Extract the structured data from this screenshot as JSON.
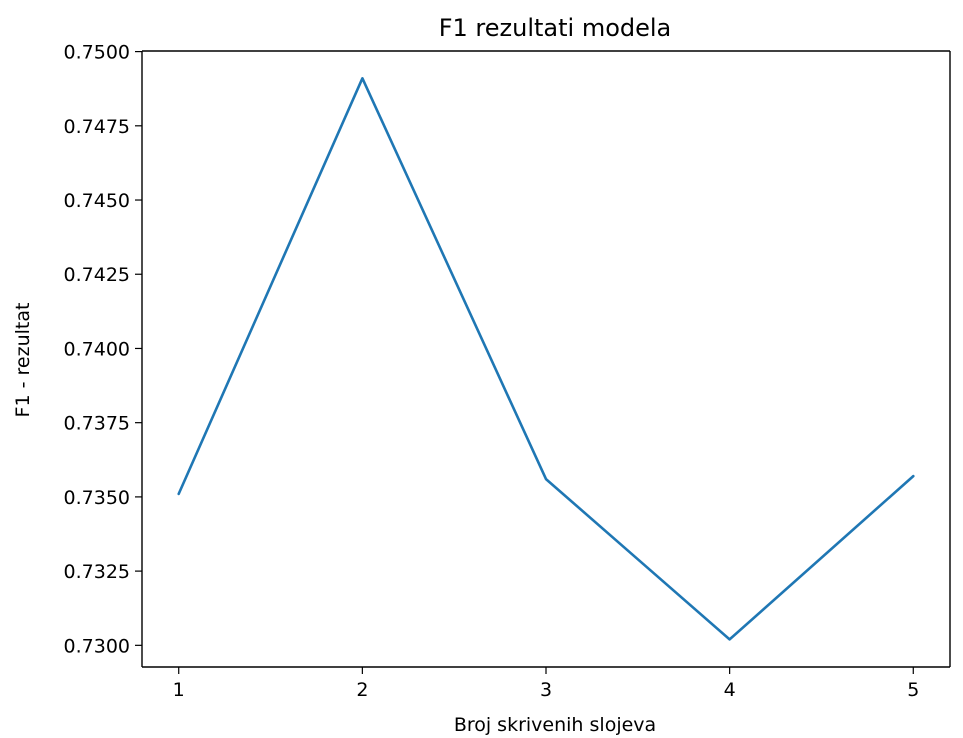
{
  "chart_data": {
    "type": "line",
    "title": "F1 rezultati modela",
    "xlabel": "Broj skrivenih slojeva",
    "ylabel": "F1 - rezultat",
    "x": [
      1,
      2,
      3,
      4,
      5
    ],
    "series": [
      {
        "values": [
          0.7351,
          0.7491,
          0.7356,
          0.7302,
          0.7357
        ],
        "color": "#1f77b4"
      }
    ],
    "xticks": [
      "1",
      "2",
      "3",
      "4",
      "5"
    ],
    "yticks": [
      "0.7300",
      "0.7325",
      "0.7350",
      "0.7375",
      "0.7400",
      "0.7425",
      "0.7450",
      "0.7475",
      "0.7500"
    ],
    "xlim": [
      0.8,
      5.2
    ],
    "ylim": [
      0.72927,
      0.75002
    ],
    "grid": false
  }
}
